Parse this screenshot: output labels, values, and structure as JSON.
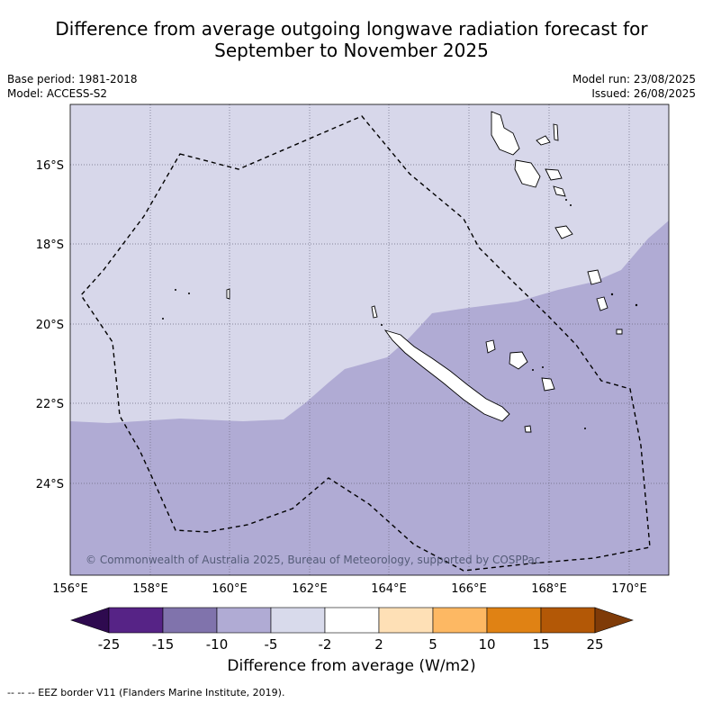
{
  "title_line1": "Difference from average outgoing longwave radiation forecast for",
  "title_line2": "September to November 2025",
  "meta_left": {
    "base_period": "Base period: 1981-2018",
    "model": "Model: ACCESS-S2"
  },
  "meta_right": {
    "model_run": "Model run: 23/08/2025",
    "issued": "Issued: 26/08/2025"
  },
  "map": {
    "lon_ticks": [
      "156°E",
      "158°E",
      "160°E",
      "162°E",
      "164°E",
      "166°E",
      "168°E",
      "170°E"
    ],
    "lat_ticks": [
      "16°S",
      "18°S",
      "20°S",
      "22°S",
      "24°S"
    ],
    "copyright": "© Commonwealth of Australia 2025, Bureau of Meteorology, supported by COSPPac",
    "colors": {
      "light_band": "#d7d7ea",
      "medium_band": "#b0abd4",
      "land_outline": "#000000",
      "eez_border": "#000000"
    }
  },
  "colorbar": {
    "ticks": [
      "-25",
      "-15",
      "-10",
      "-5",
      "-2",
      "2",
      "5",
      "10",
      "15",
      "25"
    ],
    "colors": [
      "#2e0a4f",
      "#562386",
      "#8073ac",
      "#b0abd4",
      "#d8daeb",
      "#ffffff",
      "#fee0b6",
      "#fdb863",
      "#e08214",
      "#b35806",
      "#7f3b08"
    ],
    "title": "Difference from average (W/m2)"
  },
  "footer": "--  --  -- EEZ border V11 (Flanders Marine Institute, 2019)."
}
